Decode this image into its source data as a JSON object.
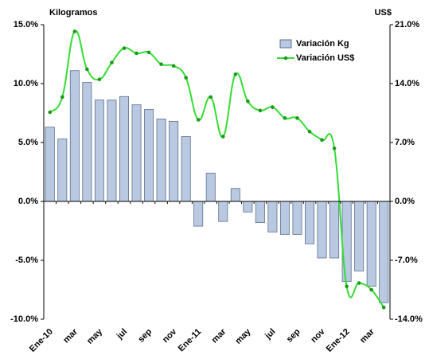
{
  "chart_data": {
    "type": "bar-line",
    "y_label": "Kilogramos",
    "y2_label": "US$",
    "categories": [
      "Ene-10",
      null,
      "mar",
      null,
      "may",
      null,
      "jul",
      null,
      "sep",
      null,
      "nov",
      null,
      "Ene-11",
      null,
      "mar",
      null,
      "may",
      null,
      "jul",
      null,
      "sep",
      null,
      "nov",
      null,
      "Ene-12",
      null,
      "mar",
      null
    ],
    "series": [
      {
        "name": "Variación Kg",
        "type": "bar",
        "color": "#b9c9e1",
        "values": [
          6.3,
          5.3,
          11.1,
          10.1,
          8.6,
          8.6,
          8.9,
          8.2,
          7.8,
          7.0,
          6.8,
          5.5,
          -2.1,
          2.4,
          -1.7,
          1.1,
          -0.9,
          -1.8,
          -2.6,
          -2.8,
          -2.8,
          -3.6,
          -4.8,
          -4.8,
          -6.8,
          -5.9,
          -7.2,
          -8.6
        ]
      },
      {
        "name": "Variación US$",
        "type": "line",
        "axis": "y2",
        "color": "#33dd33",
        "values": [
          10.6,
          12.4,
          20.2,
          15.7,
          14.5,
          16.5,
          18.2,
          17.6,
          17.7,
          16.3,
          16.1,
          14.7,
          9.7,
          12.4,
          7.7,
          15.1,
          11.9,
          10.8,
          11.2,
          9.9,
          9.9,
          8.3,
          7.3,
          6.3,
          -10.1,
          -9.7,
          -10.5,
          -12.6
        ]
      }
    ],
    "ylim": [
      -10,
      15
    ],
    "yticks": [
      {
        "value": -10,
        "label": "-10.0%"
      },
      {
        "value": -5,
        "label": "-5.0%"
      },
      {
        "value": 0,
        "label": "0.0%"
      },
      {
        "value": 5,
        "label": "5.0%"
      },
      {
        "value": 10,
        "label": "10.0%"
      },
      {
        "value": 15,
        "label": "15.0%"
      }
    ],
    "y2lim": [
      -14,
      21
    ],
    "y2ticks": [
      {
        "value": -14,
        "label": "-14.0%"
      },
      {
        "value": -7,
        "label": "-7.0%"
      },
      {
        "value": 0,
        "label": "0.0%"
      },
      {
        "value": 7,
        "label": "7.0%"
      },
      {
        "value": 14,
        "label": "14.0%"
      },
      {
        "value": 21,
        "label": "21.0%"
      }
    ],
    "legend": "upper right"
  }
}
